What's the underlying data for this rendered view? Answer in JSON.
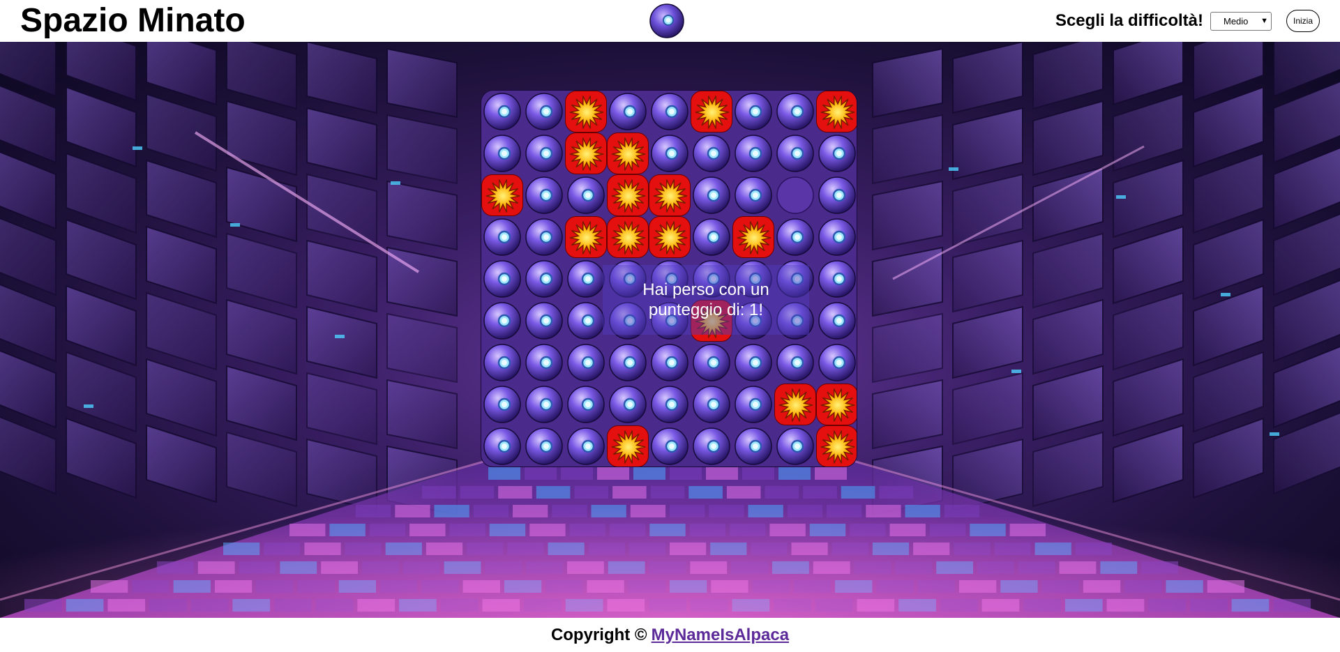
{
  "header": {
    "title": "Spazio Minato",
    "logo_icon": "purple-orb-icon",
    "difficulty_label": "Scegli la difficoltà!",
    "difficulty_selected": "Medio",
    "start_label": "Inizia"
  },
  "board": {
    "rows": 9,
    "cols": 9,
    "cells": [
      [
        "orb",
        "orb",
        "bomb",
        "orb",
        "orb",
        "bomb",
        "orb",
        "orb",
        "bomb"
      ],
      [
        "orb",
        "orb",
        "bomb",
        "bomb",
        "orb",
        "orb",
        "orb",
        "orb",
        "orb"
      ],
      [
        "bomb",
        "orb",
        "orb",
        "bomb",
        "bomb",
        "orb",
        "orb",
        "empty",
        "orb"
      ],
      [
        "orb",
        "orb",
        "bomb",
        "bomb",
        "bomb",
        "orb",
        "bomb",
        "orb",
        "orb"
      ],
      [
        "orb",
        "orb",
        "orb",
        "orb",
        "orb",
        "orb",
        "orb",
        "orb",
        "orb"
      ],
      [
        "orb",
        "orb",
        "orb",
        "orb",
        "orb",
        "bomb",
        "orb",
        "orb",
        "orb"
      ],
      [
        "orb",
        "orb",
        "orb",
        "orb",
        "orb",
        "orb",
        "orb",
        "orb",
        "orb"
      ],
      [
        "orb",
        "orb",
        "orb",
        "orb",
        "orb",
        "orb",
        "orb",
        "bomb",
        "bomb"
      ],
      [
        "orb",
        "orb",
        "orb",
        "bomb",
        "orb",
        "orb",
        "orb",
        "orb",
        "bomb"
      ]
    ],
    "icons": {
      "orb": "purple-orb-icon",
      "bomb": "explosion-icon",
      "empty": "revealed-cell"
    }
  },
  "message": {
    "text": "Hai perso con un punteggio di: 1!"
  },
  "footer": {
    "copyright": "Copyright ©",
    "author_link": "MyNameIsAlpaca"
  },
  "colors": {
    "bomb_bg": "#e40f0f",
    "board_bg": "#4a2a8a",
    "link": "#5c2a99"
  }
}
